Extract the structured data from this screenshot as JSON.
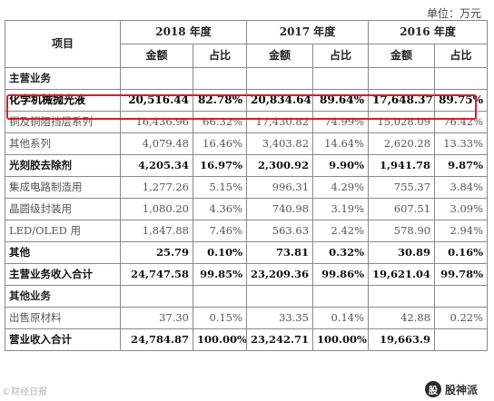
{
  "unit_label": "单位：万元",
  "header": {
    "item_label": "项目",
    "years": [
      "2018 年度",
      "2017 年度",
      "2016 年度"
    ],
    "amount_label": "金额",
    "ratio_label": "占比"
  },
  "rows": [
    {
      "label": "主营业务",
      "cells": [
        "",
        "",
        "",
        "",
        "",
        ""
      ]
    },
    {
      "label": "化学机械抛光液",
      "cells": [
        "20,516.44",
        "82.78%",
        "20,834.64",
        "89.64%",
        "17,648.37",
        "89.75%"
      ]
    },
    {
      "label": "铜及铜阻挡层系列",
      "cells": [
        "16,436.96",
        "66.32%",
        "17,430.82",
        "74.99%",
        "15,028.09",
        "76.42%"
      ]
    },
    {
      "label": "其他系列",
      "cells": [
        "4,079.48",
        "16.46%",
        "3,403.82",
        "14.64%",
        "2,620.28",
        "13.33%"
      ]
    },
    {
      "label": "光刻胶去除剂",
      "cells": [
        "4,205.34",
        "16.97%",
        "2,300.92",
        "9.90%",
        "1,941.78",
        "9.87%"
      ]
    },
    {
      "label": "集成电路制造用",
      "cells": [
        "1,277.26",
        "5.15%",
        "996.31",
        "4.29%",
        "755.37",
        "3.84%"
      ]
    },
    {
      "label": "晶圆级封装用",
      "cells": [
        "1,080.20",
        "4.36%",
        "740.98",
        "3.19%",
        "607.51",
        "3.09%"
      ]
    },
    {
      "label": "LED/OLED 用",
      "cells": [
        "1,847.88",
        "7.46%",
        "563.63",
        "2.42%",
        "578.90",
        "2.94%"
      ]
    },
    {
      "label": "其他",
      "cells": [
        "25.79",
        "0.10%",
        "73.81",
        "0.32%",
        "30.89",
        "0.16%"
      ]
    },
    {
      "label": "主营业务收入合计",
      "cells": [
        "24,747.58",
        "99.85%",
        "23,209.36",
        "99.86%",
        "19,621.04",
        "99.78%"
      ]
    },
    {
      "label": "其他业务",
      "cells": [
        "",
        "",
        "",
        "",
        "",
        ""
      ]
    },
    {
      "label": "出售原材料",
      "cells": [
        "37.30",
        "0.15%",
        "33.35",
        "0.14%",
        "42.88",
        "0.22%"
      ]
    },
    {
      "label": "营业收入合计",
      "cells": [
        "24,784.87",
        "100.00%",
        "23,242.71",
        "100.00%",
        "19,663.9",
        ""
      ]
    }
  ],
  "watermark_left": "©财经日报",
  "watermark_right": "股神派",
  "watermark_logo": "股",
  "highlight_color": "#d0202a"
}
